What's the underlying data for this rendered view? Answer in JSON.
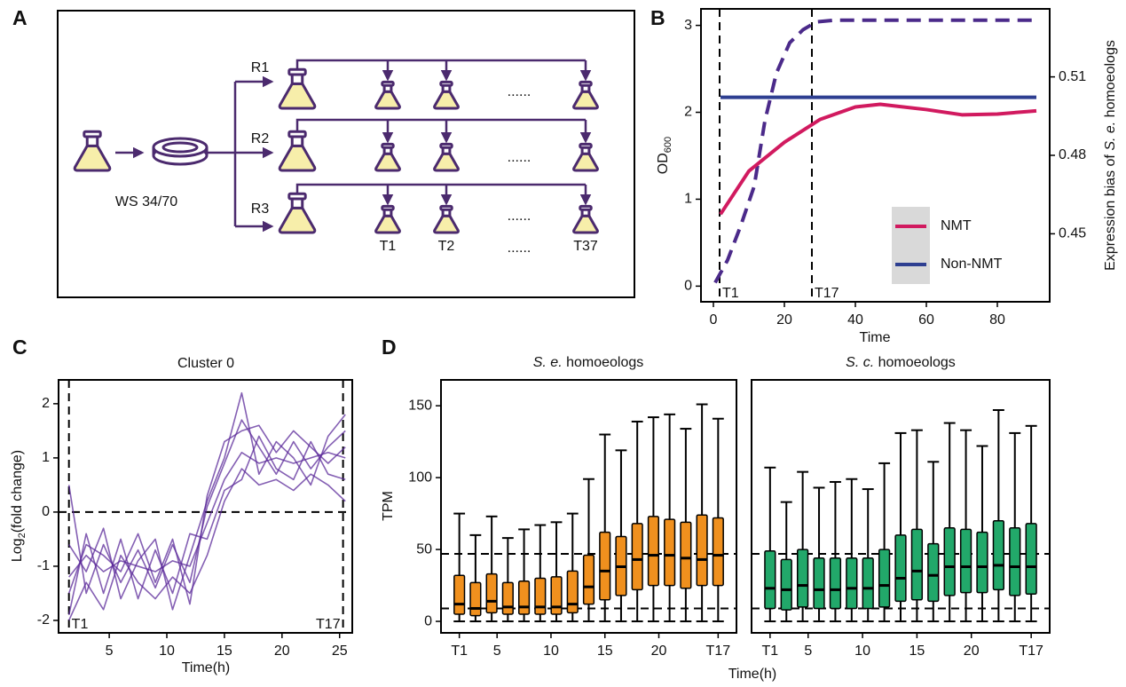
{
  "panel_labels": [
    "A",
    "B",
    "C",
    "D"
  ],
  "diagram": {
    "source": "WS 34/70",
    "replicates": [
      "R1",
      "R2",
      "R3"
    ],
    "timepoints": [
      "T1",
      "T2",
      "T37"
    ],
    "ellipsis": "......"
  },
  "chart_data": [
    {
      "type": "line",
      "x_label": "Time",
      "y_label": [
        "OD",
        "600"
      ],
      "y2_label": [
        "Expression bias of ",
        "S. e.",
        " homoeologs"
      ],
      "xlim": [
        -3.5,
        94.75
      ],
      "xticks": [
        0,
        20,
        40,
        60,
        80
      ],
      "ylim": [
        -0.18,
        3.19
      ],
      "yticks": [
        0,
        1,
        2,
        3
      ],
      "y2lim": [
        0.424,
        0.536
      ],
      "y2ticks": [
        0.45,
        0.48,
        0.51
      ],
      "vlines": [
        {
          "value": 1.75,
          "label": "T1"
        },
        {
          "value": 27.75,
          "label": "T17"
        }
      ],
      "legend": "lower right",
      "series": [
        {
          "color": "#4b2a8a",
          "linestyle": "dashed",
          "x": [
            0.5,
            4,
            7.75,
            11.5,
            14.5,
            17.75,
            21.5,
            25.25,
            29,
            34,
            50,
            91
          ],
          "values": [
            0.04,
            0.3,
            0.7,
            1.15,
            1.9,
            2.45,
            2.8,
            2.95,
            3.04,
            3.06,
            3.06,
            3.06
          ]
        },
        {
          "name": "NMT",
          "color": "#d11a5f",
          "axis": "y2",
          "x": [
            2,
            10,
            20,
            30,
            40,
            47,
            60,
            70,
            80,
            91
          ],
          "values": [
            0.4575,
            0.474,
            0.485,
            0.4937,
            0.4985,
            0.4995,
            0.4975,
            0.4955,
            0.4958,
            0.497
          ]
        },
        {
          "name": "Non-NMT",
          "color": "#2e3f91",
          "axis": "y2",
          "x": [
            2,
            91
          ],
          "values": [
            0.5022,
            0.5022
          ]
        }
      ]
    },
    {
      "type": "line",
      "title": "Cluster 0",
      "x_label": "Time(h)",
      "y_label": [
        "Log",
        "2",
        "(fold change)"
      ],
      "color": "#5b2a9a",
      "xlim": [
        0.6,
        26.1
      ],
      "xticks": [
        5,
        10,
        15,
        20,
        25
      ],
      "ylim": [
        -2.23,
        2.44
      ],
      "yticks": [
        -2,
        -1,
        0,
        1,
        2
      ],
      "hlines": [
        0
      ],
      "vlines": [
        {
          "value": 1.5,
          "label": "T1"
        },
        {
          "value": 25.3,
          "label": "T17"
        }
      ],
      "x": [
        1.5,
        3,
        4.5,
        6,
        7.5,
        9,
        10.5,
        12,
        13.5,
        15,
        16.5,
        18,
        19.5,
        21,
        22.5,
        24,
        25.5
      ],
      "series": [
        {
          "values": [
            -1.2,
            -0.8,
            -1.1,
            -0.9,
            -1.0,
            -1.1,
            -0.9,
            -1.0,
            -0.2,
            0.6,
            1.1,
            0.9,
            1.0,
            0.9,
            1.0,
            1.1,
            1.0
          ]
        },
        {
          "values": [
            0.5,
            -1.5,
            -0.6,
            -1.3,
            -0.7,
            -1.4,
            -0.6,
            -1.3,
            0.1,
            0.9,
            1.7,
            1.2,
            0.7,
            1.3,
            0.8,
            1.2,
            1.5
          ]
        },
        {
          "values": [
            -1.9,
            -0.4,
            -1.5,
            -0.5,
            -1.6,
            -0.7,
            -1.5,
            -0.4,
            -0.5,
            0.4,
            0.6,
            1.4,
            0.8,
            0.6,
            1.3,
            0.7,
            0.6
          ]
        },
        {
          "values": [
            -0.6,
            -1.1,
            -0.3,
            -1.6,
            -0.9,
            -0.5,
            -1.8,
            -0.8,
            0.2,
            1.0,
            2.2,
            0.7,
            1.3,
            1.0,
            0.5,
            1.4,
            1.8
          ]
        },
        {
          "values": [
            -2.0,
            -1.3,
            -1.8,
            -0.8,
            -1.3,
            -1.6,
            -1.2,
            -1.5,
            -0.8,
            0.2,
            0.8,
            0.5,
            0.6,
            0.4,
            0.7,
            0.5,
            0.2
          ]
        },
        {
          "values": [
            -1.5,
            -0.6,
            -0.8,
            -1.1,
            -0.4,
            -1.3,
            -0.5,
            -1.7,
            0.3,
            1.3,
            1.5,
            1.6,
            1.1,
            1.5,
            1.2,
            0.9,
            1.2
          ]
        }
      ]
    },
    {
      "type": "box",
      "title": [
        "S. e.",
        " homoeologs"
      ],
      "x_label": "Time(h)",
      "y_label": "TPM",
      "color": "#f0901e",
      "xlim": [
        -0.2,
        27.2
      ],
      "xticks": [
        {
          "value": 1.5,
          "label": "T1"
        },
        5,
        10,
        15,
        20,
        {
          "value": 25.5,
          "label": "T17"
        }
      ],
      "ylim": [
        -8,
        168
      ],
      "yticks": [
        0,
        50,
        100,
        150
      ],
      "hlines": [
        47,
        9
      ],
      "x": [
        1.5,
        3,
        4.5,
        6,
        7.5,
        9,
        10.5,
        12,
        13.5,
        15,
        16.5,
        18,
        19.5,
        21,
        22.5,
        24,
        25.5
      ],
      "whislo": [
        0,
        0,
        0,
        0,
        0,
        0,
        0,
        0,
        0,
        0,
        0,
        0,
        0,
        0,
        0,
        0,
        0
      ],
      "q1": [
        5,
        4,
        6,
        5,
        5,
        5,
        5,
        6,
        12,
        15,
        18,
        22,
        25,
        25,
        23,
        25,
        25
      ],
      "median": [
        12,
        9,
        14,
        10,
        10,
        10,
        10,
        12,
        24,
        35,
        38,
        43,
        46,
        46,
        44,
        43,
        46
      ],
      "q3": [
        32,
        27,
        33,
        27,
        28,
        30,
        31,
        35,
        46,
        62,
        59,
        68,
        73,
        71,
        69,
        74,
        72
      ],
      "whishi": [
        75,
        60,
        73,
        58,
        64,
        67,
        69,
        75,
        99,
        130,
        119,
        139,
        142,
        144,
        134,
        151,
        141
      ]
    },
    {
      "type": "box",
      "title": [
        "S. c.",
        " homoeologs"
      ],
      "color": "#22a86a",
      "xlim": [
        -0.2,
        27.2
      ],
      "xticks": [
        {
          "value": 1.5,
          "label": "T1"
        },
        5,
        10,
        15,
        20,
        {
          "value": 25.5,
          "label": "T17"
        }
      ],
      "ylim": [
        -8,
        168
      ],
      "hlines": [
        47,
        9
      ],
      "x": [
        1.5,
        3,
        4.5,
        6,
        7.5,
        9,
        10.5,
        12,
        13.5,
        15,
        16.5,
        18,
        19.5,
        21,
        22.5,
        24,
        25.5
      ],
      "whislo": [
        0,
        0,
        0,
        0,
        0,
        0,
        0,
        0,
        0,
        0,
        0,
        0,
        0,
        0,
        0,
        0,
        0
      ],
      "q1": [
        9,
        8,
        10,
        9,
        9,
        9,
        9,
        10,
        14,
        15,
        14,
        18,
        20,
        20,
        22,
        18,
        19
      ],
      "median": [
        23,
        22,
        25,
        22,
        22,
        23,
        23,
        25,
        30,
        35,
        32,
        38,
        38,
        38,
        39,
        38,
        38
      ],
      "q3": [
        49,
        43,
        50,
        44,
        44,
        44,
        44,
        50,
        60,
        64,
        54,
        65,
        64,
        62,
        70,
        65,
        68
      ],
      "whishi": [
        107,
        83,
        104,
        93,
        97,
        99,
        92,
        110,
        131,
        133,
        111,
        138,
        133,
        122,
        147,
        131,
        136
      ]
    }
  ]
}
